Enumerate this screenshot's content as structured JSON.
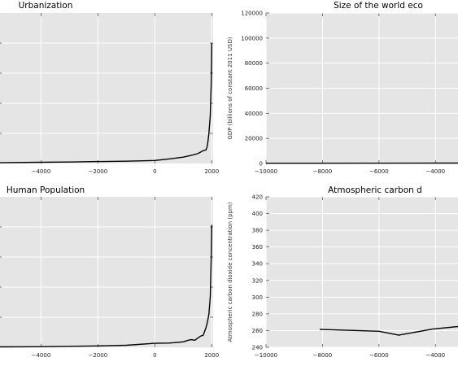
{
  "chart_data": [
    {
      "type": "line",
      "title": "Urbanization",
      "xlabel": "",
      "ylabel": "",
      "xlim": [
        -5500,
        2050
      ],
      "ylim": [
        0,
        1.0
      ],
      "xticks": [
        -4000,
        -2000,
        0,
        2000
      ],
      "yticks": [],
      "grid": true,
      "series": [
        {
          "x": [
            -5500,
            -4000,
            -3000,
            -2000,
            -1000,
            0,
            500,
            1000,
            1300,
            1500,
            1600,
            1700,
            1800,
            1850,
            1900,
            1950,
            1980,
            2000
          ],
          "y": [
            0.005,
            0.008,
            0.01,
            0.013,
            0.015,
            0.02,
            0.03,
            0.042,
            0.055,
            0.065,
            0.075,
            0.085,
            0.09,
            0.12,
            0.2,
            0.32,
            0.52,
            0.8
          ]
        }
      ]
    },
    {
      "type": "line",
      "title": "Size of the world eco",
      "xlabel": "",
      "ylabel": "GDP (billions of constant 2011 USD)",
      "xlim": [
        -10000,
        -3000
      ],
      "ylim": [
        0,
        120000
      ],
      "xticks": [
        -10000,
        -8000,
        -6000,
        -4000
      ],
      "yticks": [
        0,
        20000,
        40000,
        60000,
        80000,
        100000,
        120000
      ],
      "grid": true,
      "series": [
        {
          "x": [
            -10000,
            -3000
          ],
          "y": [
            200,
            300
          ]
        }
      ]
    },
    {
      "type": "line",
      "title": "Human Population",
      "xlabel": "",
      "ylabel": "",
      "xlim": [
        -5500,
        2050
      ],
      "ylim": [
        0,
        7.5
      ],
      "xticks": [
        -4000,
        -2000,
        0,
        2000
      ],
      "yticks": [],
      "grid": true,
      "series": [
        {
          "x": [
            -5500,
            -4000,
            -3000,
            -2000,
            -1000,
            0,
            500,
            1000,
            1200,
            1300,
            1400,
            1500,
            1600,
            1700,
            1800,
            1850,
            1900,
            1950,
            1980,
            2000
          ],
          "y": [
            0.02,
            0.03,
            0.05,
            0.07,
            0.1,
            0.2,
            0.21,
            0.27,
            0.36,
            0.38,
            0.35,
            0.45,
            0.55,
            0.6,
            0.99,
            1.26,
            1.65,
            2.52,
            4.4,
            6.1
          ]
        }
      ]
    },
    {
      "type": "line",
      "title": "Atmospheric carbon d",
      "xlabel": "",
      "ylabel": "Atmospheric carbon dioxide concentration (ppm)",
      "xlim": [
        -10000,
        -3000
      ],
      "ylim": [
        240,
        420
      ],
      "xticks": [
        -10000,
        -8000,
        -6000,
        -4000
      ],
      "yticks": [
        240,
        260,
        280,
        300,
        320,
        340,
        360,
        380,
        400,
        420
      ],
      "grid": true,
      "series": [
        {
          "x": [
            -8100,
            -6000,
            -5300,
            -4100,
            -3000
          ],
          "y": [
            261.5,
            259.2,
            254.5,
            261.8,
            265.5
          ]
        }
      ]
    }
  ]
}
